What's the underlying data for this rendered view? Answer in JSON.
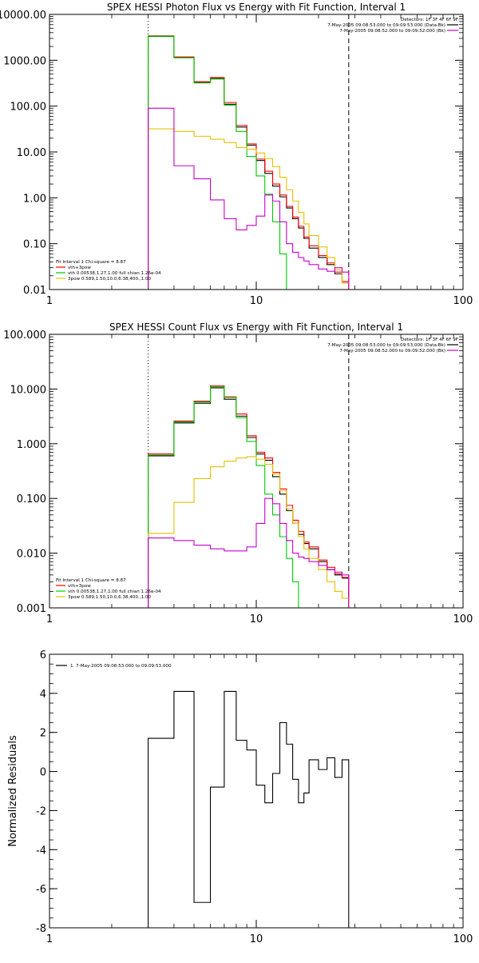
{
  "chart_data": [
    {
      "type": "line",
      "title": "SPEX HESSI Photon Flux vs Energy with Fit Function, Interval 1",
      "xlabel": "",
      "ylabel": "",
      "xscale": "log",
      "yscale": "log",
      "xlim": [
        1,
        100
      ],
      "ylim": [
        0.01,
        10000
      ],
      "xticks": [
        {
          "v": 1,
          "label": "1"
        },
        {
          "v": 10,
          "label": "10"
        },
        {
          "v": 100,
          "label": "100"
        }
      ],
      "yticks": [
        {
          "v": 10000,
          "label": "10000.00"
        },
        {
          "v": 1000,
          "label": "1000.00"
        },
        {
          "v": 100,
          "label": "100.00"
        },
        {
          "v": 10,
          "label": "10.00"
        },
        {
          "v": 1,
          "label": "1.00"
        },
        {
          "v": 0.1,
          "label": "0.10"
        },
        {
          "v": 0.01,
          "label": "0.01"
        }
      ],
      "vlines": [
        {
          "x": 3,
          "style": "dotted"
        },
        {
          "x": 28,
          "style": "dashed"
        }
      ],
      "legend_top": {
        "position": "top-right",
        "lines": [
          {
            "text": "Detectors: 1F 3F 4F 6F 9F",
            "color": ""
          },
          {
            "text": "7-May-2005 09:08:53.000 to 09:09:53.000 (Data-Bk)",
            "color": "#000000"
          },
          {
            "text": "7-May-2005 09:08:52.000 to 09:09:52.000 (Bk)",
            "color": "#cc00cc"
          }
        ]
      },
      "legend_bottom": {
        "position": "bottom-left",
        "lines": [
          {
            "text": "Fit Interval 1    Chi-square = 8.87",
            "color": ""
          },
          {
            "text": "vth+3pow",
            "color": "#ff0000"
          },
          {
            "text": "vth 0.00538,1.27,1.00  full chian 1.26e-04",
            "color": "#00cc00"
          },
          {
            "text": "3pow 0.589,1.50,10.0,6.38,400.,1.00",
            "color": "#e6c000"
          }
        ]
      },
      "edges": [
        3,
        4,
        5,
        6,
        7,
        8,
        9,
        10,
        11,
        12,
        13,
        14,
        15,
        16,
        17,
        18,
        20,
        22,
        24,
        26,
        28
      ],
      "series": [
        {
          "color": "#000000",
          "values": [
            3300,
            1150,
            330,
            400,
            110,
            35,
            14,
            6.5,
            3.4,
            1.8,
            1.05,
            0.6,
            0.35,
            0.22,
            0.13,
            0.08,
            0.05,
            0.035,
            0.022,
            0.014
          ]
        },
        {
          "color": "#ff0000",
          "values": [
            3400,
            1180,
            340,
            420,
            120,
            38,
            15,
            7,
            3.8,
            2,
            1.15,
            0.65,
            0.38,
            0.24,
            0.14,
            0.09,
            0.055,
            0.038,
            0.024,
            0.015
          ]
        },
        {
          "color": "#00cc00",
          "values": [
            3350,
            1130,
            320,
            390,
            105,
            28,
            8,
            3,
            1.2,
            0.3,
            0.06,
            0.01,
            0.001
          ]
        },
        {
          "color": "#e6c000",
          "values": [
            32,
            28,
            22,
            19,
            16,
            12.5,
            11.5,
            9.5,
            7.2,
            4.8,
            2.8,
            1.5,
            0.85,
            0.48,
            0.27,
            0.15,
            0.085,
            0.05,
            0.027,
            0.014
          ]
        },
        {
          "color": "#cc00cc",
          "values": [
            90,
            5,
            2.6,
            0.9,
            0.35,
            0.2,
            0.25,
            0.4,
            1.15,
            0.85,
            0.3,
            0.1,
            0.065,
            0.05,
            0.042,
            0.035,
            0.028,
            0.025,
            0.03,
            0.024
          ]
        }
      ]
    },
    {
      "type": "line",
      "title": "SPEX HESSI Count Flux vs Energy with Fit Function, Interval 1",
      "xlabel": "",
      "ylabel": "",
      "xscale": "log",
      "yscale": "log",
      "xlim": [
        1,
        100
      ],
      "ylim": [
        0.001,
        100
      ],
      "xticks": [
        {
          "v": 1,
          "label": "1"
        },
        {
          "v": 10,
          "label": "10"
        },
        {
          "v": 100,
          "label": "100"
        }
      ],
      "yticks": [
        {
          "v": 100,
          "label": "100.000"
        },
        {
          "v": 10,
          "label": "10.000"
        },
        {
          "v": 1,
          "label": "1.000"
        },
        {
          "v": 0.1,
          "label": "0.100"
        },
        {
          "v": 0.01,
          "label": "0.010"
        },
        {
          "v": 0.001,
          "label": "0.001"
        }
      ],
      "vlines": [
        {
          "x": 3,
          "style": "dotted"
        },
        {
          "x": 28,
          "style": "dashed"
        }
      ],
      "legend_top": {
        "position": "top-right",
        "lines": [
          {
            "text": "Detectors: 1F 3F 4F 6F 9F",
            "color": ""
          },
          {
            "text": "7-May-2005 09:08:53.000 to 09:09:53.000 (Data-Bk)",
            "color": "#000000"
          },
          {
            "text": "7-May-2005 09:08:52.000 to 09:09:52.000 (Bk)",
            "color": "#cc00cc"
          }
        ]
      },
      "legend_bottom": {
        "position": "bottom-left",
        "lines": [
          {
            "text": "Fit Interval 1    Chi-square = 8.87",
            "color": ""
          },
          {
            "text": "vth+3pow",
            "color": "#ff0000"
          },
          {
            "text": "vth 0.00538,1.27,1.00  full chian 1.26e-04",
            "color": "#00cc00"
          },
          {
            "text": "3pow 0.589,1.50,10.0,6.38,400.,1.00",
            "color": "#e6c000"
          }
        ]
      },
      "edges": [
        3,
        4,
        5,
        6,
        7,
        8,
        9,
        10,
        11,
        12,
        13,
        14,
        15,
        16,
        17,
        18,
        20,
        22,
        24,
        26,
        28
      ],
      "series": [
        {
          "color": "#000000",
          "values": [
            0.6,
            2.4,
            5.5,
            10.5,
            6.5,
            3.2,
            1.3,
            0.65,
            0.5,
            0.25,
            0.12,
            0.06,
            0.035,
            0.022,
            0.015,
            0.012,
            0.007,
            0.005,
            0.004,
            0.0035
          ]
        },
        {
          "color": "#ff0000",
          "values": [
            0.65,
            2.6,
            6,
            11.5,
            7.2,
            3.5,
            1.4,
            0.7,
            0.55,
            0.3,
            0.15,
            0.075,
            0.04,
            0.025,
            0.016,
            0.013,
            0.0075,
            0.0055,
            0.0042,
            0.0036
          ]
        },
        {
          "color": "#00cc00",
          "values": [
            0.62,
            2.5,
            5.8,
            11,
            7,
            3,
            1.1,
            0.4,
            0.12,
            0.05,
            0.02,
            0.008,
            0.003,
            0.001
          ]
        },
        {
          "color": "#e6c000",
          "values": [
            0.023,
            0.085,
            0.23,
            0.38,
            0.48,
            0.55,
            0.58,
            0.52,
            0.42,
            0.28,
            0.14,
            0.065,
            0.035,
            0.02,
            0.012,
            0.008,
            0.005,
            0.003,
            0.002,
            0.0015
          ]
        },
        {
          "color": "#cc00cc",
          "values": [
            0.019,
            0.017,
            0.014,
            0.012,
            0.011,
            0.011,
            0.013,
            0.035,
            0.1,
            0.08,
            0.035,
            0.017,
            0.01,
            0.0085,
            0.008,
            0.007,
            0.006,
            0.005,
            0.0045,
            0.004
          ]
        }
      ]
    },
    {
      "type": "line",
      "title": "",
      "xlabel": "",
      "ylabel": "Normalized Residuals",
      "xscale": "log",
      "yscale": "linear",
      "xlim": [
        1,
        100
      ],
      "ylim": [
        -8,
        6
      ],
      "xticks": [
        {
          "v": 1,
          "label": "1"
        },
        {
          "v": 10,
          "label": "10"
        },
        {
          "v": 100,
          "label": "100"
        }
      ],
      "yticks": [
        {
          "v": 6,
          "label": "6"
        },
        {
          "v": 4,
          "label": "4"
        },
        {
          "v": 2,
          "label": "2"
        },
        {
          "v": 0,
          "label": "0"
        },
        {
          "v": -2,
          "label": "-2"
        },
        {
          "v": -4,
          "label": "-4"
        },
        {
          "v": -6,
          "label": "-6"
        },
        {
          "v": -8,
          "label": "-8"
        }
      ],
      "vlines": [],
      "legend_top": {
        "position": "top-left",
        "lines": [
          {
            "text": "1.  7-May-2005 09:08:53.000 to 09:09:53.000",
            "color": "#000000"
          }
        ]
      },
      "legend_bottom": {
        "position": "bottom-left",
        "lines": []
      },
      "edges": [
        3,
        4,
        5,
        6,
        7,
        8,
        9,
        10,
        11,
        12,
        13,
        14,
        15,
        16,
        17,
        18,
        20,
        22,
        24,
        26,
        28
      ],
      "series": [
        {
          "color": "#000000",
          "values": [
            1.7,
            4.1,
            -6.7,
            -0.8,
            4.1,
            1.6,
            1.1,
            -0.7,
            -1.6,
            -0.1,
            2.5,
            1.4,
            -0.4,
            -1.6,
            -1.1,
            0.6,
            0.1,
            0.7,
            -0.3,
            0.6
          ]
        }
      ]
    }
  ]
}
